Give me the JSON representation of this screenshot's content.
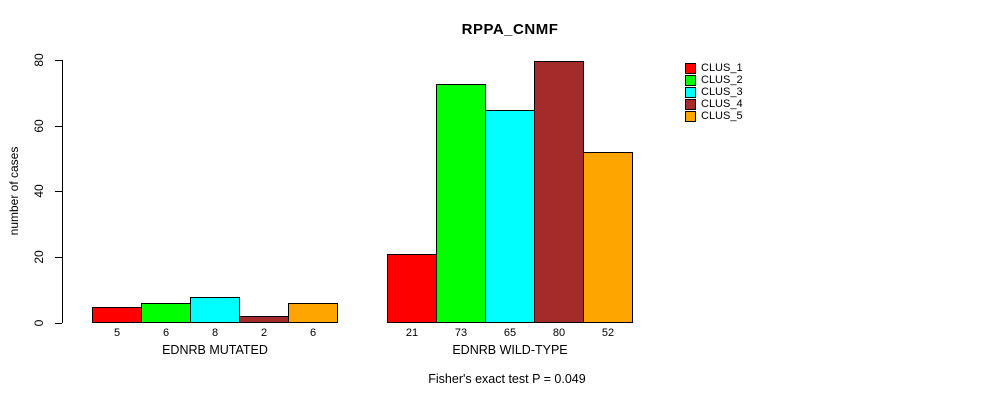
{
  "chart_data": {
    "type": "bar",
    "title": "RPPA_CNMF",
    "ylabel": "number of cases",
    "ylim": [
      0,
      80
    ],
    "yticks": [
      0,
      20,
      40,
      60,
      80
    ],
    "grid": false,
    "legend_position": "right",
    "categories": [
      "EDNRB MUTATED",
      "EDNRB WILD-TYPE"
    ],
    "series": [
      {
        "name": "CLUS_1",
        "color": "#FF0000",
        "values": [
          5,
          21
        ]
      },
      {
        "name": "CLUS_2",
        "color": "#00FF00",
        "values": [
          6,
          73
        ]
      },
      {
        "name": "CLUS_3",
        "color": "#00FFFF",
        "values": [
          8,
          65
        ]
      },
      {
        "name": "CLUS_4",
        "color": "#A52A2A",
        "values": [
          2,
          80
        ]
      },
      {
        "name": "CLUS_5",
        "color": "#FFA500",
        "values": [
          6,
          52
        ]
      }
    ],
    "bar_value_labels_shown": true,
    "annotation": "Fisher's exact test P = 0.049"
  }
}
